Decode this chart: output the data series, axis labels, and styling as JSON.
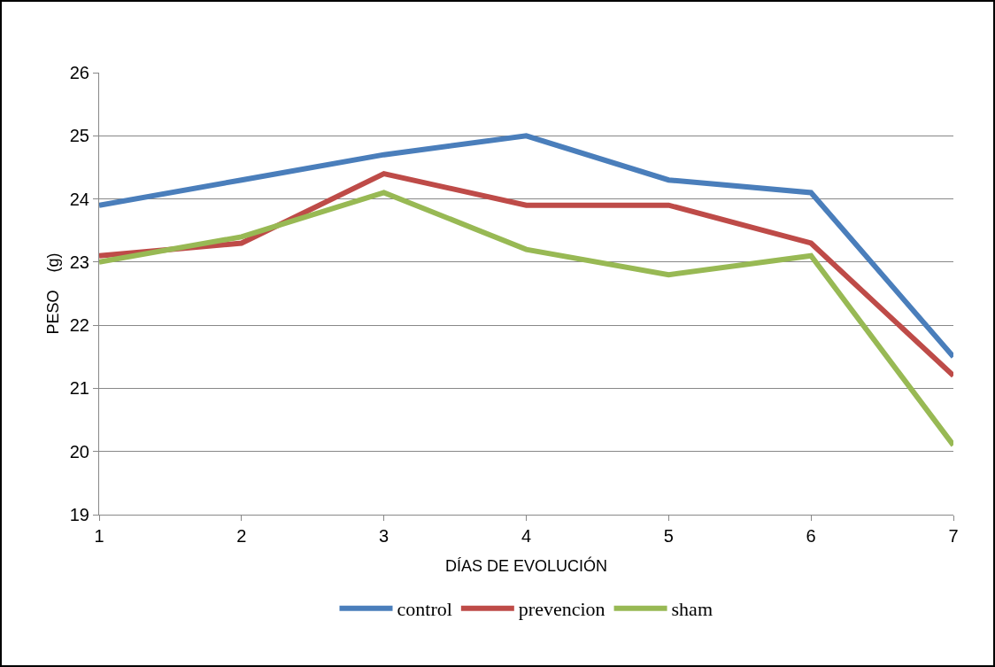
{
  "chart_data": {
    "type": "line",
    "xlabel": "DÍAS DE EVOLUCIÓN",
    "ylabel": "PESO    (g)",
    "categories": [
      "1",
      "2",
      "3",
      "4",
      "5",
      "6",
      "7"
    ],
    "series": [
      {
        "name": "control",
        "color": "#4a7ebb",
        "values": [
          23.9,
          24.3,
          24.7,
          25.0,
          24.3,
          24.1,
          21.5
        ]
      },
      {
        "name": "prevencion",
        "color": "#be4b48",
        "values": [
          23.1,
          23.3,
          24.4,
          23.9,
          23.9,
          23.3,
          21.2
        ]
      },
      {
        "name": "sham",
        "color": "#98b954",
        "values": [
          23.0,
          23.4,
          24.1,
          23.2,
          22.8,
          23.1,
          20.1
        ]
      }
    ],
    "ylim": [
      19,
      26
    ],
    "yticks": [
      19,
      20,
      21,
      22,
      23,
      24,
      25,
      26
    ],
    "grid": "y",
    "legend": "bottom",
    "marker": "none",
    "line_style": "solid"
  }
}
